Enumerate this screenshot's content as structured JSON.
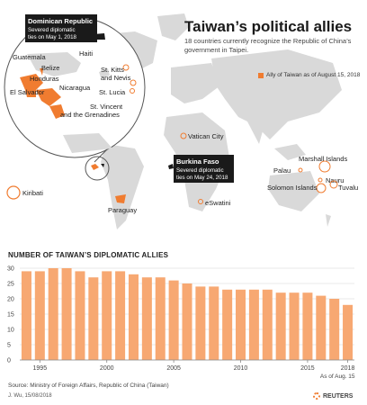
{
  "header": {
    "title": "Taiwan’s political allies",
    "subtitle": "18 countries currently recognize the Republic of China’s government in Taipei.",
    "legend": "Ally of Taiwan as of August 15, 2018"
  },
  "map": {
    "callout_dominican": {
      "name": "Dominican Republic",
      "line1": "Severed diplomatic",
      "line2": "ties on May 1, 2018"
    },
    "callout_burkina": {
      "name": "Burkina Faso",
      "line1": "Severed diplomatic",
      "line2": "ties on May 24, 2018"
    },
    "labels": {
      "guatemala": "Guatemala",
      "belize": "Belize",
      "honduras": "Honduras",
      "el_salvador": "El Salvador",
      "nicaragua": "Nicaragua",
      "haiti": "Haiti",
      "st_kitts_1": "St. Kitts",
      "st_kitts_2": "and Nevis",
      "st_lucia": "St. Lucia",
      "st_vincent_1": "St. Vincent",
      "st_vincent_2": "and the Grenadines",
      "vatican": "Vatican City",
      "kiribati": "Kiribati",
      "paraguay": "Paraguay",
      "eswatini": "eSwatini",
      "marshall": "Marshall Islands",
      "palau": "Palau",
      "nauru": "Nauru",
      "solomon": "Solomon Islands",
      "tuvalu": "Tuvalu"
    },
    "colors": {
      "ally": "#f07c30",
      "land": "#d9d9d9",
      "dark": "#1a1a1a"
    }
  },
  "chart_data": {
    "type": "bar",
    "title": "NUMBER OF TAIWAN’S DIPLOMATIC ALLIES",
    "x": [
      1994,
      1995,
      1996,
      1997,
      1998,
      1999,
      2000,
      2001,
      2002,
      2003,
      2004,
      2005,
      2006,
      2007,
      2008,
      2009,
      2010,
      2011,
      2012,
      2013,
      2014,
      2015,
      2016,
      2017,
      2018
    ],
    "values": [
      29,
      29,
      30,
      30,
      29,
      27,
      29,
      29,
      28,
      27,
      27,
      26,
      25,
      24,
      24,
      23,
      23,
      23,
      23,
      22,
      22,
      22,
      21,
      20,
      18
    ],
    "xticks": [
      "1995",
      "2000",
      "2005",
      "2010",
      "2015",
      "2018"
    ],
    "xtick_values": [
      1995,
      2000,
      2005,
      2010,
      2015,
      2018
    ],
    "yticks": [
      0,
      5,
      10,
      15,
      20,
      25,
      30
    ],
    "ylim": [
      0,
      30
    ],
    "last_note": "As of Aug. 15",
    "bar_color": "#f7a872",
    "grid": true
  },
  "footer": {
    "source": "Source: Ministry of Foreign Affairs, Republic of China (Taiwan)",
    "credit": "J. Wu, 15/08/2018",
    "logo": "REUTERS"
  }
}
